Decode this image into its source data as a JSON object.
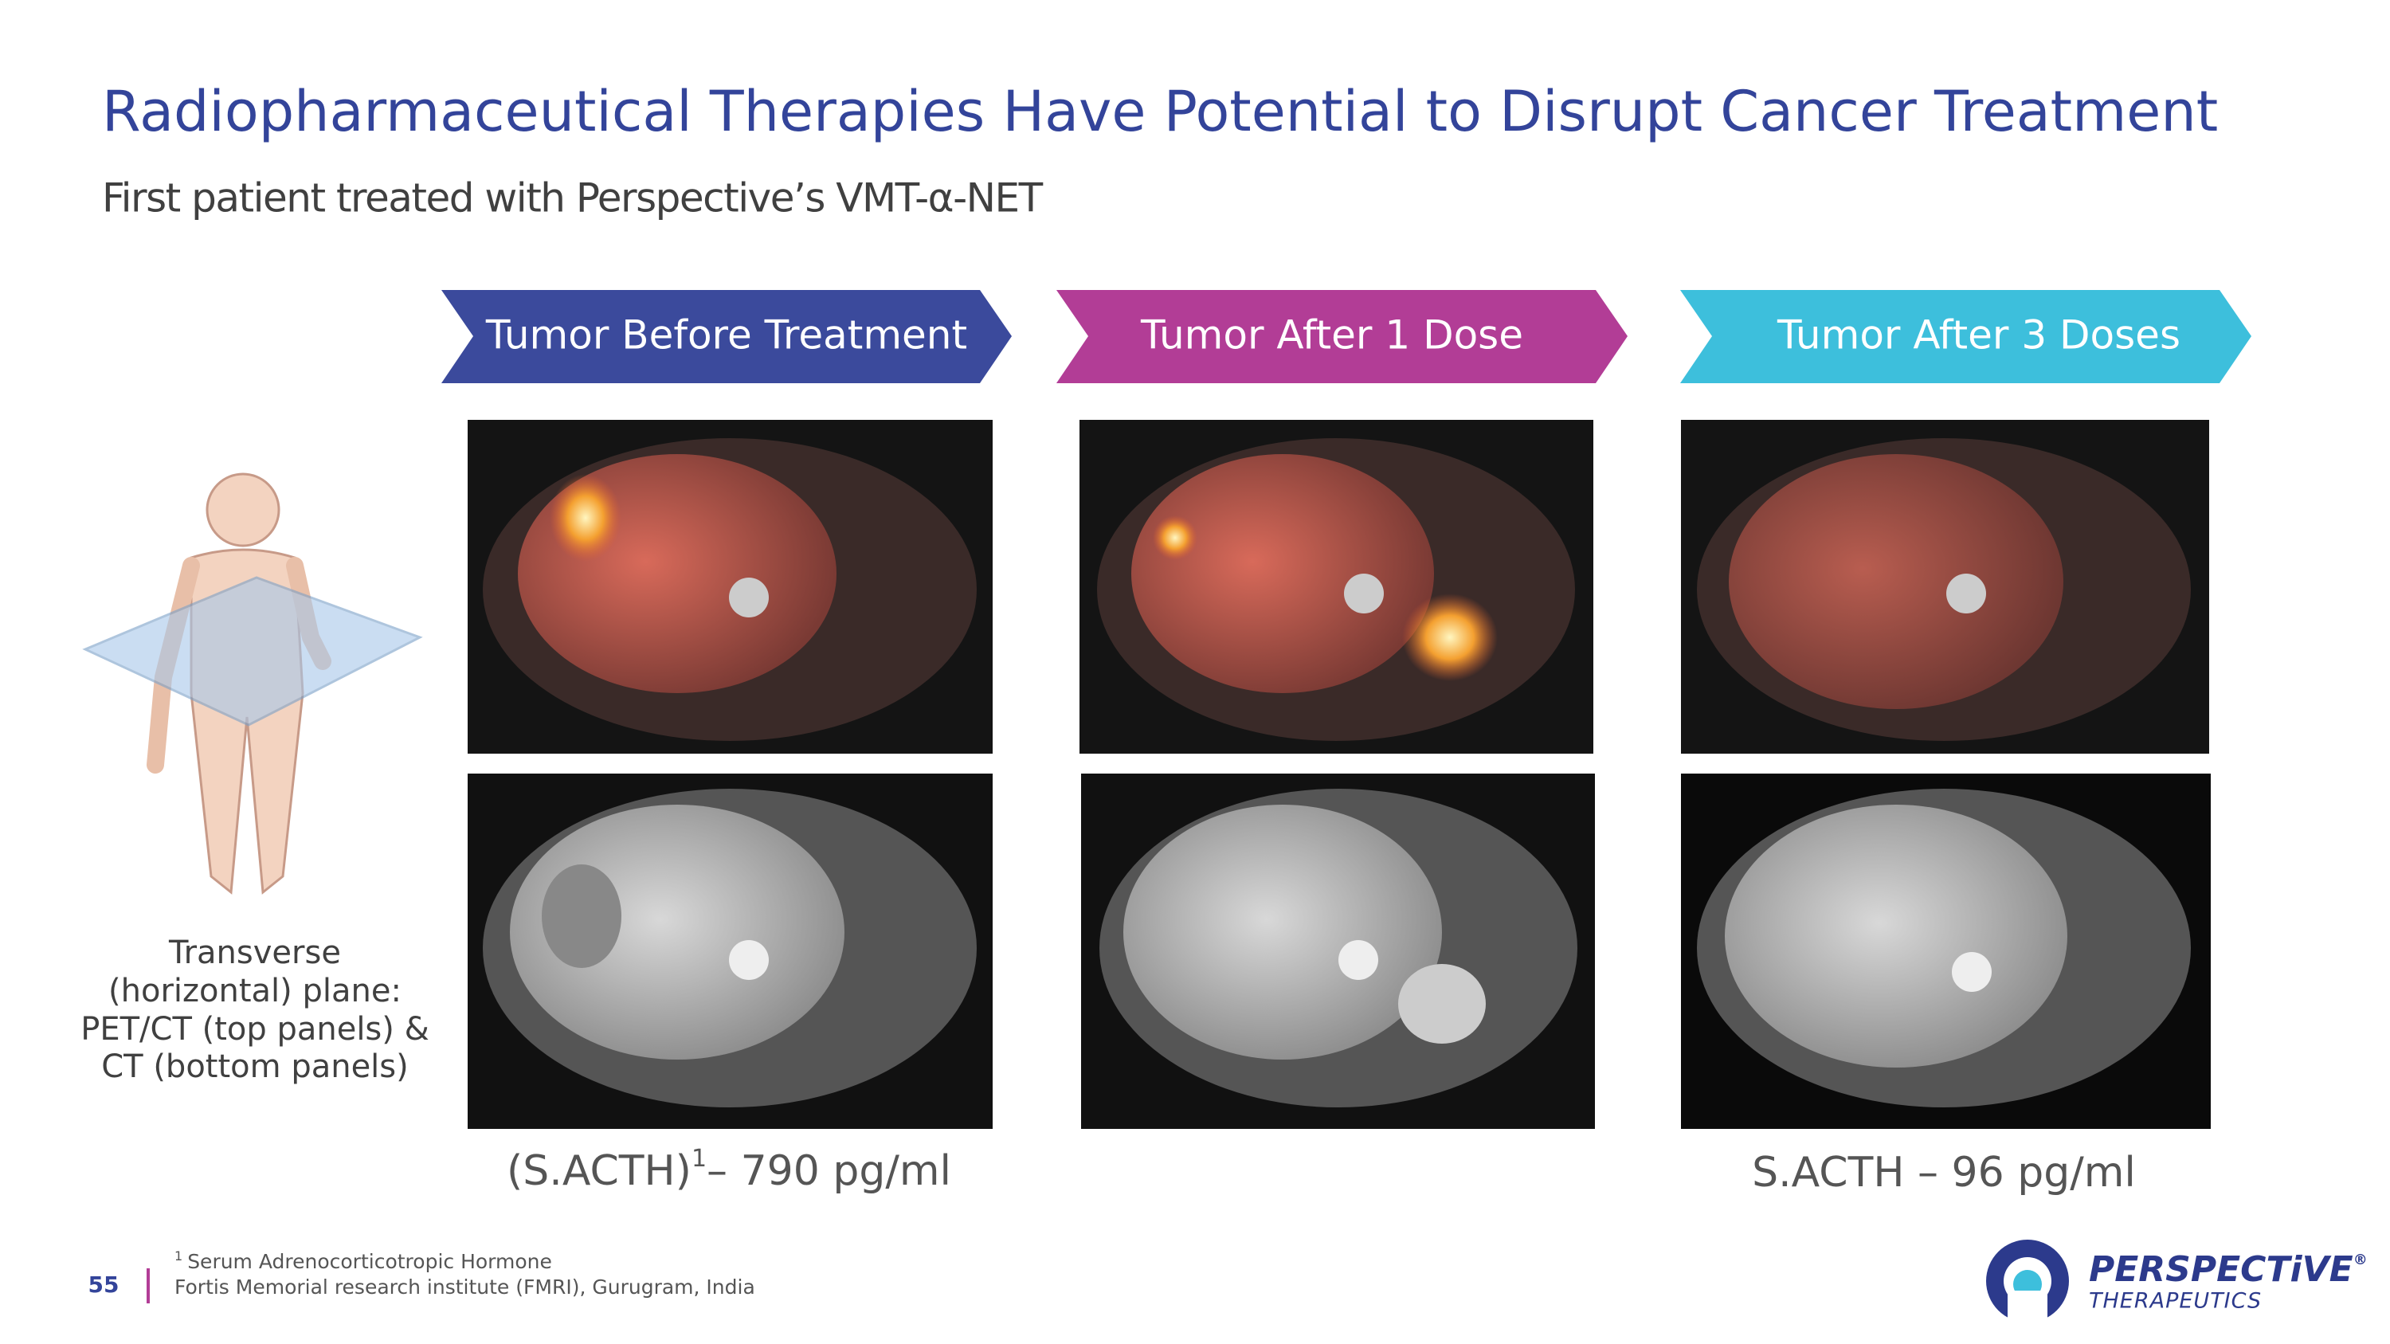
{
  "header": {
    "title": "Radiopharmaceutical Therapies Have Potential to Disrupt Cancer Treatment",
    "subtitle": "First patient treated with Perspective’s VMT-α-NET"
  },
  "stages": [
    "Tumor Before Treatment",
    "Tumor After 1 Dose",
    "Tumor After 3 Doses"
  ],
  "plane_caption": [
    "Transverse",
    "(horizontal) plane:",
    "PET/CT (top panels) &",
    "CT (bottom panels)"
  ],
  "measurements": {
    "before": {
      "label": "(S.ACTH)",
      "superscript": "1",
      "value": "– 790 pg/ml"
    },
    "after": "S.ACTH – 96 pg/ml"
  },
  "footer": {
    "page": "55",
    "footnote_mark": "1",
    "footnote": "Serum Adrenocorticotropic Hormone",
    "source": "Fortis Memorial research institute (FMRI), Gurugram, India"
  },
  "logo": {
    "name": "PERSPECTiVE",
    "mark": "®",
    "tagline": "THERAPEUTICS"
  }
}
